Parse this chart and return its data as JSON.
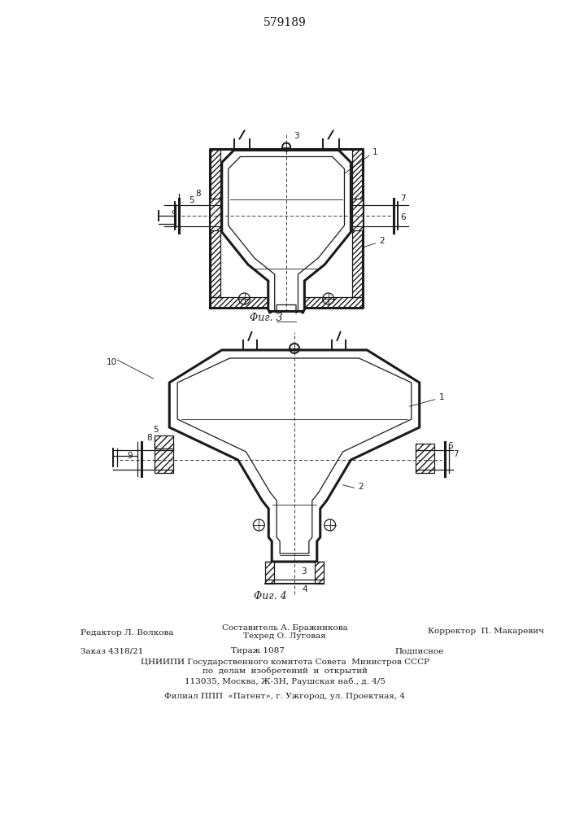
{
  "title": "579189",
  "fig3_caption": "Φиг. 3",
  "fig4_caption": "Φиг. 4",
  "bg_color": "#ffffff",
  "line_color": "#1a1a1a"
}
